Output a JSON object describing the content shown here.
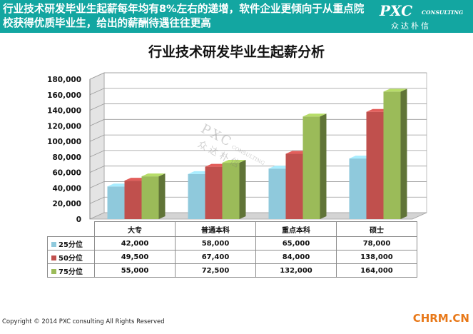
{
  "header": {
    "headline": "行业技术研发毕业生起薪每年均有8%左右的递增，软件企业更倾向于从重点院校获得优质毕业生，给出的薪酬待遇往往更高",
    "logo_main": "PXC",
    "logo_sub": "CONSULTING",
    "logo_cn": "众达朴信",
    "background_color": "#13a6a1"
  },
  "watermark": {
    "main": "PXC",
    "sub": "CONSULTING",
    "cn": "众达朴信"
  },
  "chart_data": {
    "type": "bar",
    "title": "行业技术研发毕业生起薪分析",
    "xlabel": "",
    "ylabel": "",
    "categories": [
      "大专",
      "普通本科",
      "重点本科",
      "硕士"
    ],
    "ylim": [
      0,
      180000
    ],
    "y_ticks": [
      "0",
      "20,000",
      "40,000",
      "60,000",
      "80,000",
      "100,000",
      "120,000",
      "140,000",
      "160,000",
      "180,000"
    ],
    "grid": true,
    "style": "3d-clustered-column",
    "series": [
      {
        "name": "25分位",
        "color": "#8fc9dc",
        "values": [
          42000,
          58000,
          65000,
          78000
        ],
        "labels": [
          "42,000",
          "58,000",
          "65,000",
          "78,000"
        ]
      },
      {
        "name": "50分位",
        "color": "#c0504d",
        "values": [
          49500,
          67400,
          84000,
          138000
        ],
        "labels": [
          "49,500",
          "67,400",
          "84,000",
          "138,000"
        ]
      },
      {
        "name": "75分位",
        "color": "#9bbb59",
        "values": [
          55000,
          72500,
          132000,
          164000
        ],
        "labels": [
          "55,000",
          "72,500",
          "132,000",
          "164,000"
        ]
      }
    ]
  },
  "footer": {
    "copyright": "Copyright © 2014  PXC consulting All Rights Reserved",
    "site": "CHRM.CN"
  }
}
